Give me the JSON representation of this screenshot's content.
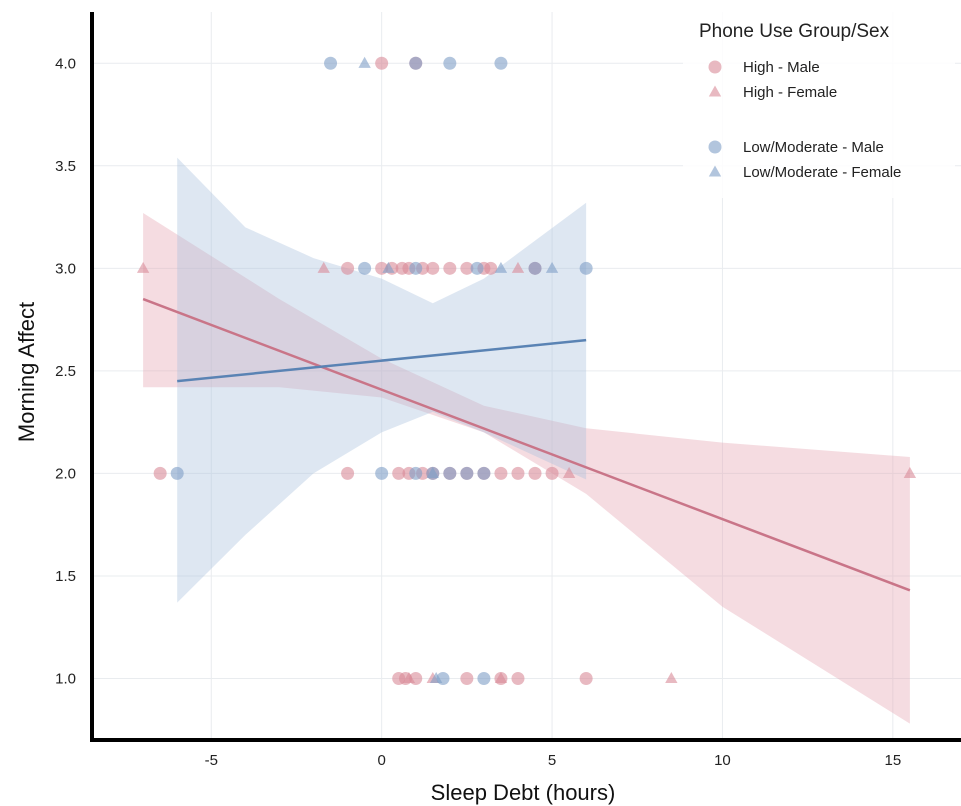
{
  "chart_data": {
    "type": "scatter",
    "xlabel": "Sleep Debt (hours)",
    "ylabel": "Morning Affect",
    "xlim": [
      -8.5,
      17
    ],
    "ylim": [
      0.7,
      4.25
    ],
    "xticks": [
      -5,
      0,
      5,
      10,
      15
    ],
    "yticks": [
      1.0,
      1.5,
      2.0,
      2.5,
      3.0,
      3.5,
      4.0
    ],
    "xtick_labels": [
      "-5",
      "0",
      "5",
      "10",
      "15"
    ],
    "ytick_labels": [
      "1.0",
      "1.5",
      "2.0",
      "2.5",
      "3.0",
      "3.5",
      "4.0"
    ],
    "grid": true,
    "legend": {
      "title": "Phone Use Group/Sex",
      "placement": "top-right",
      "groups": [
        [
          {
            "label": "High - Male",
            "marker": "circle",
            "series": 0
          },
          {
            "label": "High - Female",
            "marker": "triangle",
            "series": 1
          }
        ],
        [
          {
            "label": "Low/Moderate - Male",
            "marker": "circle",
            "series": 2
          },
          {
            "label": "Low/Moderate - Female",
            "marker": "triangle",
            "series": 3
          }
        ]
      ]
    },
    "colors": {
      "high": "#d98a98",
      "low": "#7f9fc6",
      "high_line": "#c97588",
      "low_line": "#5a83b4",
      "high_band": "#e6a3b0",
      "low_band": "#a8c1dc"
    },
    "series": [
      {
        "name": "High - Male",
        "marker": "circle",
        "color": "#d98a98",
        "points": [
          [
            0,
            4
          ],
          [
            1,
            4
          ],
          [
            -1,
            3
          ],
          [
            0,
            3
          ],
          [
            0.3,
            3
          ],
          [
            0.6,
            3
          ],
          [
            0.8,
            3
          ],
          [
            1.2,
            3
          ],
          [
            1.5,
            3
          ],
          [
            2,
            3
          ],
          [
            2.5,
            3
          ],
          [
            3,
            3
          ],
          [
            3.2,
            3
          ],
          [
            4.5,
            3
          ],
          [
            -6.5,
            2
          ],
          [
            -1,
            2
          ],
          [
            0.5,
            2
          ],
          [
            0.8,
            2
          ],
          [
            1.2,
            2
          ],
          [
            1.5,
            2
          ],
          [
            2,
            2
          ],
          [
            2.5,
            2
          ],
          [
            3,
            2
          ],
          [
            3.5,
            2
          ],
          [
            4,
            2
          ],
          [
            4.5,
            2
          ],
          [
            5,
            2
          ],
          [
            0.5,
            1
          ],
          [
            0.7,
            1
          ],
          [
            1,
            1
          ],
          [
            2.5,
            1
          ],
          [
            3.5,
            1
          ],
          [
            4,
            1
          ],
          [
            6,
            1
          ]
        ]
      },
      {
        "name": "High - Female",
        "marker": "triangle",
        "color": "#d98a98",
        "points": [
          [
            -7,
            3
          ],
          [
            -1.7,
            3
          ],
          [
            4,
            3
          ],
          [
            5.5,
            2
          ],
          [
            15.5,
            2
          ],
          [
            0.8,
            1
          ],
          [
            1.5,
            1
          ],
          [
            3.5,
            1
          ],
          [
            8.5,
            1
          ]
        ]
      },
      {
        "name": "Low/Moderate - Male",
        "marker": "circle",
        "color": "#7f9fc6",
        "points": [
          [
            -1.5,
            4
          ],
          [
            1,
            4
          ],
          [
            2,
            4
          ],
          [
            3.5,
            4
          ],
          [
            -0.5,
            3
          ],
          [
            1,
            3
          ],
          [
            2.8,
            3
          ],
          [
            4.5,
            3
          ],
          [
            6,
            3
          ],
          [
            -6,
            2
          ],
          [
            0,
            2
          ],
          [
            1,
            2
          ],
          [
            1.5,
            2
          ],
          [
            2,
            2
          ],
          [
            2.5,
            2
          ],
          [
            3,
            2
          ],
          [
            1.8,
            1
          ],
          [
            3,
            1
          ]
        ]
      },
      {
        "name": "Low/Moderate - Female",
        "marker": "triangle",
        "color": "#7f9fc6",
        "points": [
          [
            -0.5,
            4
          ],
          [
            0.2,
            3
          ],
          [
            3.5,
            3
          ],
          [
            5,
            3
          ],
          [
            1.5,
            2
          ],
          [
            1.6,
            1
          ]
        ]
      }
    ],
    "fits": [
      {
        "series_group": "High",
        "x": [
          -7,
          15.5
        ],
        "y": [
          2.85,
          1.43
        ],
        "band": {
          "x": [
            -7,
            -3,
            0,
            3,
            6,
            10,
            15.5
          ],
          "upper": [
            3.27,
            2.85,
            2.56,
            2.33,
            2.22,
            2.15,
            2.08
          ],
          "lower": [
            2.42,
            2.42,
            2.37,
            2.2,
            1.9,
            1.35,
            0.78
          ]
        }
      },
      {
        "series_group": "Low/Moderate",
        "x": [
          -6,
          6
        ],
        "y": [
          2.45,
          2.65
        ],
        "band": {
          "x": [
            -6,
            -4,
            -2,
            0,
            1.5,
            3,
            6
          ],
          "upper": [
            3.54,
            3.2,
            3.05,
            2.95,
            2.83,
            2.95,
            3.32
          ],
          "lower": [
            1.37,
            1.7,
            2.0,
            2.2,
            2.3,
            2.2,
            1.97
          ]
        }
      }
    ]
  }
}
